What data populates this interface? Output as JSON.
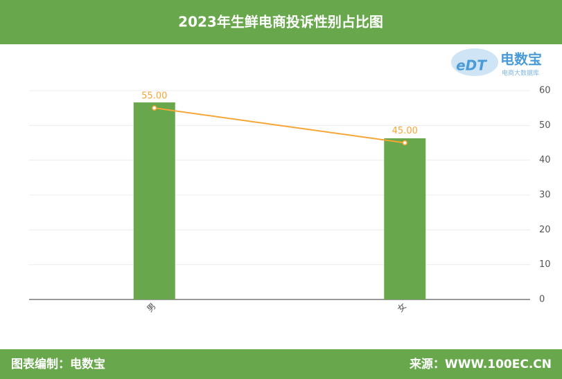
{
  "chart_data": {
    "type": "bar",
    "title": "2023年生鲜电商投诉性别占比图",
    "categories": [
      "男",
      "女"
    ],
    "series": [
      {
        "type": "bar",
        "color": "#68a74c",
        "values": [
          56.6,
          46.3
        ]
      },
      {
        "type": "line",
        "color": "#f7a535",
        "values": [
          55,
          45
        ],
        "value_labels": [
          "55.00",
          "45.00"
        ]
      }
    ],
    "ylim": [
      0,
      60
    ],
    "yticks": [
      0,
      10,
      20,
      30,
      40,
      50,
      60
    ],
    "grid": true
  },
  "logo": {
    "mark": "eDT",
    "name": "电数宝",
    "sub": "电商大数据库"
  },
  "footer": {
    "left": "图表编制：电数宝",
    "right": "来源：WWW.100EC.CN"
  }
}
